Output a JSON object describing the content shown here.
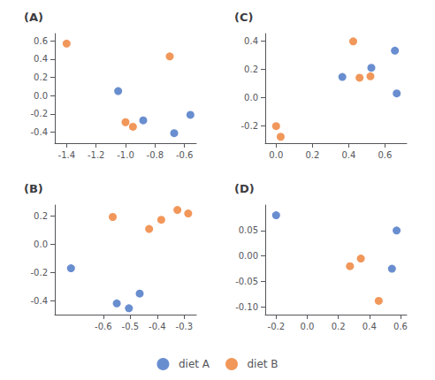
{
  "chart_data": [
    {
      "type": "scatter",
      "title": "(A)",
      "grid": false,
      "legend": "bottom",
      "series": [
        {
          "name": "diet A",
          "color": "#4472c4",
          "x": [
            -1.05,
            -0.88,
            -0.67,
            -0.56
          ],
          "values": [
            0.05,
            -0.27,
            -0.41,
            -0.21
          ]
        },
        {
          "name": "diet B",
          "color": "#ed7d31",
          "x": [
            -1.4,
            -1.0,
            -0.95,
            -0.7
          ],
          "values": [
            0.57,
            -0.29,
            -0.34,
            0.43
          ]
        }
      ],
      "xlim": [
        -1.48,
        -0.52
      ],
      "ylim": [
        -0.52,
        0.68
      ],
      "xticks": [
        -1.4,
        -1.2,
        {
          "value": -1.0,
          "label": "-1.0"
        },
        -0.8,
        -0.6
      ],
      "yticks": [
        -0.4,
        -0.2,
        {
          "value": 0.0,
          "label": "0.0"
        },
        0.2,
        0.4,
        0.6
      ]
    },
    {
      "type": "scatter",
      "title": "(B)",
      "grid": false,
      "legend": "bottom",
      "series": [
        {
          "name": "diet A",
          "color": "#4472c4",
          "x": [
            -0.72,
            -0.55,
            -0.505,
            -0.465
          ],
          "values": [
            -0.17,
            -0.42,
            -0.455,
            -0.35
          ]
        },
        {
          "name": "diet B",
          "color": "#ed7d31",
          "x": [
            -0.565,
            -0.43,
            -0.385,
            -0.325,
            -0.285
          ],
          "values": [
            0.195,
            0.11,
            0.175,
            0.245,
            0.22
          ]
        }
      ],
      "xlim": [
        -0.78,
        -0.255
      ],
      "ylim": [
        -0.5,
        0.28
      ],
      "xticks": [
        -0.6,
        -0.5,
        -0.4,
        -0.3
      ],
      "yticks": [
        -0.4,
        -0.2,
        {
          "value": 0.0,
          "label": "0.0"
        },
        0.2
      ]
    },
    {
      "type": "scatter",
      "title": "(C)",
      "grid": false,
      "legend": "bottom",
      "series": [
        {
          "name": "diet A",
          "color": "#4472c4",
          "x": [
            0.365,
            0.525,
            0.655,
            0.665
          ],
          "values": [
            0.145,
            0.21,
            0.33,
            0.03
          ]
        },
        {
          "name": "diet B",
          "color": "#ed7d31",
          "x": [
            0.0,
            0.025,
            0.425,
            0.46,
            0.52
          ],
          "values": [
            -0.2,
            -0.275,
            0.395,
            0.14,
            0.15
          ]
        }
      ],
      "xlim": [
        -0.06,
        0.72
      ],
      "ylim": [
        -0.32,
        0.45
      ],
      "xticks": [
        {
          "value": 0.0,
          "label": "0.0"
        },
        0.2,
        0.4,
        0.6
      ],
      "yticks": [
        -0.2,
        {
          "value": 0.0,
          "label": "0.0"
        },
        0.2,
        0.4
      ]
    },
    {
      "type": "scatter",
      "title": "(D)",
      "grid": false,
      "legend": "bottom",
      "series": [
        {
          "name": "diet A",
          "color": "#4472c4",
          "x": [
            -0.2,
            0.545,
            0.575
          ],
          "values": [
            0.08,
            -0.025,
            0.05
          ]
        },
        {
          "name": "diet B",
          "color": "#ed7d31",
          "x": [
            0.275,
            0.345,
            0.46
          ],
          "values": [
            -0.02,
            -0.005,
            -0.088
          ]
        }
      ],
      "xlim": [
        -0.27,
        0.64
      ],
      "ylim": [
        -0.115,
        0.1
      ],
      "xticks": [
        -0.2,
        {
          "value": 0.0,
          "label": "0.0"
        },
        0.2,
        0.4,
        0.6
      ],
      "yticks": [
        {
          "value": -0.1,
          "label": "-0.10"
        },
        -0.05,
        {
          "value": 0.0,
          "label": "0.00"
        },
        0.05
      ]
    }
  ]
}
